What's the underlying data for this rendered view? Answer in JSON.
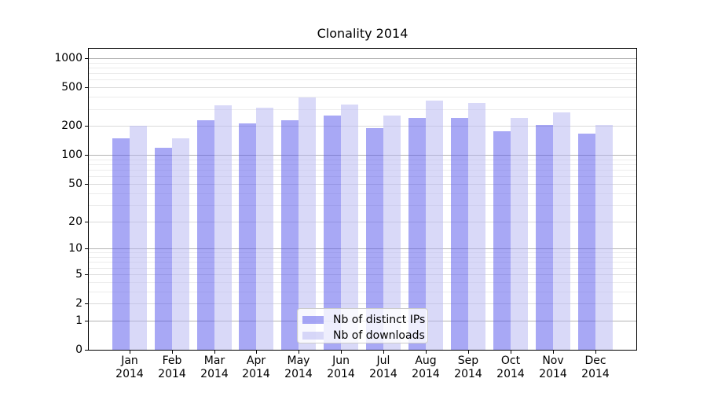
{
  "chart_data": {
    "type": "bar",
    "title": "Clonality 2014",
    "categories": [
      "Jan",
      "Feb",
      "Mar",
      "Apr",
      "May",
      "Jun",
      "Jul",
      "Aug",
      "Sep",
      "Oct",
      "Nov",
      "Dec"
    ],
    "year": "2014",
    "series": [
      {
        "name": "Nb of distinct IPs",
        "color": "#a8a8f5",
        "rgba": "rgba(81,81,235,0.5)",
        "values": [
          148,
          120,
          228,
          214,
          228,
          255,
          191,
          242,
          242,
          175,
          205,
          168
        ]
      },
      {
        "name": "Nb of downloads",
        "color": "#d9d9f8",
        "rgba": "rgba(179,179,241,0.5)",
        "values": [
          201,
          149,
          325,
          311,
          394,
          335,
          255,
          363,
          346,
          241,
          274,
          203
        ]
      }
    ],
    "xlabel": "",
    "ylabel": "",
    "yscale": "log1p",
    "yticks": [
      0,
      1,
      2,
      5,
      10,
      20,
      50,
      100,
      200,
      500,
      1000
    ],
    "ylim": [
      0,
      1250
    ],
    "grid": true,
    "grid_major_at": [
      1,
      10,
      100,
      1000
    ],
    "legend_position": "lower-center",
    "legend_labels": [
      "Nb of distinct IPs",
      "Nb of downloads"
    ]
  }
}
